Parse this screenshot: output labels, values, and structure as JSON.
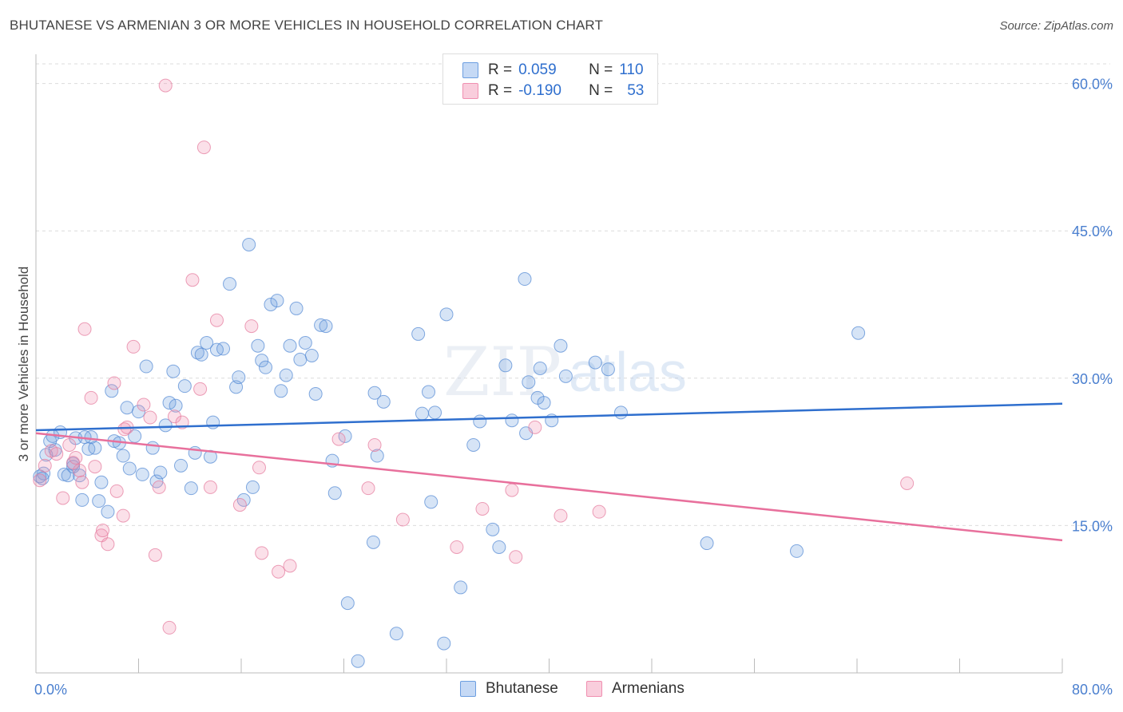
{
  "header": {
    "title": "BHUTANESE VS ARMENIAN 3 OR MORE VEHICLES IN HOUSEHOLD CORRELATION CHART",
    "source": "Source: ZipAtlas.com"
  },
  "watermark": {
    "part1": "ZIP",
    "part2": "atlas"
  },
  "legend_top": {
    "rows": [
      {
        "r_label": "R =",
        "r_value": "0.059",
        "n_label": "N =",
        "n_value": "110",
        "color": "#6c9ee0"
      },
      {
        "r_label": "R =",
        "r_value": "-0.190",
        "n_label": "N =",
        "n_value": "53",
        "color": "#f08fb0"
      }
    ]
  },
  "legend_bottom": [
    {
      "label": "Bhutanese",
      "color": "#6c9ee0"
    },
    {
      "label": "Armenians",
      "color": "#f08fb0"
    }
  ],
  "chart_data": {
    "type": "scatter",
    "title": "BHUTANESE VS ARMENIAN 3 OR MORE VEHICLES IN HOUSEHOLD CORRELATION CHART",
    "xlabel": "",
    "ylabel": "3 or more Vehicles in Household",
    "xlim": [
      0,
      80
    ],
    "ylim": [
      0,
      62
    ],
    "x_tick_labels": [
      "0.0%",
      "80.0%"
    ],
    "y_ticks": [
      15,
      30,
      45,
      60
    ],
    "y_tick_labels": [
      "15.0%",
      "30.0%",
      "45.0%",
      "60.0%"
    ],
    "grid": true,
    "legend_position": "top-center",
    "series": [
      {
        "name": "Bhutanese",
        "color": "#6c9ee0",
        "stroke": "#5a8dd6",
        "trend": {
          "x": [
            0,
            80
          ],
          "y": [
            24.7,
            27.4
          ],
          "color": "#2f6fce"
        },
        "points": [
          [
            0.3,
            20.0
          ],
          [
            0.6,
            20.3
          ],
          [
            0.8,
            22.2
          ],
          [
            1.1,
            23.6
          ],
          [
            1.3,
            24.1
          ],
          [
            1.5,
            22.7
          ],
          [
            1.9,
            24.5
          ],
          [
            2.2,
            20.2
          ],
          [
            2.5,
            20.1
          ],
          [
            2.9,
            21.3
          ],
          [
            3.1,
            23.9
          ],
          [
            3.4,
            20.1
          ],
          [
            3.6,
            17.6
          ],
          [
            4.1,
            22.8
          ],
          [
            4.3,
            24.0
          ],
          [
            4.6,
            22.9
          ],
          [
            4.9,
            17.5
          ],
          [
            5.1,
            19.4
          ],
          [
            5.6,
            16.4
          ],
          [
            5.9,
            28.7
          ],
          [
            6.1,
            23.6
          ],
          [
            6.5,
            23.4
          ],
          [
            6.8,
            22.1
          ],
          [
            7.1,
            27.0
          ],
          [
            7.3,
            20.8
          ],
          [
            7.7,
            24.1
          ],
          [
            8.0,
            26.6
          ],
          [
            8.3,
            20.2
          ],
          [
            8.6,
            31.2
          ],
          [
            9.1,
            22.9
          ],
          [
            9.4,
            19.5
          ],
          [
            9.7,
            20.4
          ],
          [
            10.1,
            25.2
          ],
          [
            10.4,
            27.5
          ],
          [
            10.7,
            30.7
          ],
          [
            10.9,
            27.2
          ],
          [
            11.3,
            21.1
          ],
          [
            11.6,
            29.2
          ],
          [
            12.1,
            18.8
          ],
          [
            12.4,
            22.4
          ],
          [
            12.6,
            32.6
          ],
          [
            12.9,
            32.4
          ],
          [
            13.3,
            33.6
          ],
          [
            13.6,
            22.0
          ],
          [
            13.8,
            25.5
          ],
          [
            14.1,
            32.9
          ],
          [
            14.6,
            33.0
          ],
          [
            15.1,
            39.6
          ],
          [
            15.6,
            29.1
          ],
          [
            15.8,
            30.1
          ],
          [
            16.2,
            17.6
          ],
          [
            16.6,
            43.6
          ],
          [
            16.9,
            18.9
          ],
          [
            17.3,
            33.3
          ],
          [
            17.6,
            31.8
          ],
          [
            17.9,
            31.1
          ],
          [
            18.3,
            37.5
          ],
          [
            18.8,
            37.9
          ],
          [
            19.1,
            28.7
          ],
          [
            19.5,
            30.3
          ],
          [
            19.8,
            33.3
          ],
          [
            20.3,
            37.1
          ],
          [
            20.6,
            31.9
          ],
          [
            21.0,
            33.6
          ],
          [
            21.5,
            32.3
          ],
          [
            21.8,
            28.4
          ],
          [
            22.2,
            35.4
          ],
          [
            22.6,
            35.3
          ],
          [
            23.1,
            21.6
          ],
          [
            23.3,
            18.3
          ],
          [
            24.1,
            24.1
          ],
          [
            26.3,
            13.3
          ],
          [
            26.4,
            28.5
          ],
          [
            26.6,
            22.1
          ],
          [
            27.1,
            27.6
          ],
          [
            28.1,
            4.0
          ],
          [
            29.8,
            34.5
          ],
          [
            30.1,
            26.4
          ],
          [
            30.6,
            28.6
          ],
          [
            30.8,
            17.4
          ],
          [
            31.1,
            26.5
          ],
          [
            31.8,
            3.0
          ],
          [
            32.0,
            36.5
          ],
          [
            33.1,
            8.7
          ],
          [
            34.1,
            23.2
          ],
          [
            34.6,
            25.6
          ],
          [
            35.6,
            14.6
          ],
          [
            36.1,
            12.8
          ],
          [
            36.6,
            31.3
          ],
          [
            37.1,
            25.7
          ],
          [
            38.1,
            40.1
          ],
          [
            38.4,
            29.6
          ],
          [
            39.1,
            28.0
          ],
          [
            39.3,
            31.0
          ],
          [
            39.6,
            27.5
          ],
          [
            40.2,
            25.7
          ],
          [
            40.9,
            33.3
          ],
          [
            41.3,
            30.2
          ],
          [
            43.6,
            31.6
          ],
          [
            44.6,
            30.9
          ],
          [
            45.6,
            26.5
          ],
          [
            52.3,
            13.2
          ],
          [
            59.3,
            12.4
          ],
          [
            64.1,
            34.6
          ],
          [
            38.2,
            24.4
          ],
          [
            25.1,
            1.2
          ],
          [
            24.3,
            7.1
          ],
          [
            3.8,
            24.0
          ],
          [
            2.9,
            21.0
          ],
          [
            0.5,
            19.8
          ]
        ]
      },
      {
        "name": "Armenians",
        "color": "#f08fb0",
        "stroke": "#e57fa0",
        "trend": {
          "x": [
            0,
            80
          ],
          "y": [
            24.4,
            13.5
          ],
          "color": "#e8709c"
        },
        "points": [
          [
            0.3,
            19.6
          ],
          [
            0.7,
            21.1
          ],
          [
            1.2,
            22.6
          ],
          [
            1.6,
            22.3
          ],
          [
            2.1,
            17.8
          ],
          [
            2.6,
            23.2
          ],
          [
            2.9,
            21.4
          ],
          [
            3.4,
            20.6
          ],
          [
            3.6,
            19.4
          ],
          [
            3.8,
            35.0
          ],
          [
            4.3,
            28.0
          ],
          [
            4.6,
            21.0
          ],
          [
            5.1,
            14.0
          ],
          [
            5.2,
            14.5
          ],
          [
            5.6,
            13.1
          ],
          [
            6.1,
            29.5
          ],
          [
            6.3,
            18.5
          ],
          [
            6.8,
            16.0
          ],
          [
            7.1,
            25.0
          ],
          [
            7.6,
            33.2
          ],
          [
            8.4,
            27.3
          ],
          [
            8.9,
            26.0
          ],
          [
            9.3,
            12.0
          ],
          [
            9.6,
            18.9
          ],
          [
            10.1,
            59.8
          ],
          [
            10.4,
            4.6
          ],
          [
            10.8,
            26.1
          ],
          [
            11.4,
            25.5
          ],
          [
            12.2,
            40.0
          ],
          [
            12.8,
            28.9
          ],
          [
            13.1,
            53.5
          ],
          [
            13.6,
            18.9
          ],
          [
            14.1,
            35.9
          ],
          [
            15.9,
            17.1
          ],
          [
            16.8,
            35.3
          ],
          [
            17.4,
            20.9
          ],
          [
            17.6,
            12.2
          ],
          [
            18.9,
            10.3
          ],
          [
            19.8,
            10.9
          ],
          [
            23.6,
            23.8
          ],
          [
            25.9,
            18.8
          ],
          [
            26.4,
            23.2
          ],
          [
            28.6,
            15.6
          ],
          [
            32.8,
            12.8
          ],
          [
            34.8,
            16.7
          ],
          [
            37.1,
            18.6
          ],
          [
            37.4,
            11.8
          ],
          [
            38.9,
            25.0
          ],
          [
            40.9,
            16.0
          ],
          [
            43.9,
            16.4
          ],
          [
            67.9,
            19.3
          ],
          [
            6.9,
            24.8
          ],
          [
            3.1,
            21.9
          ]
        ]
      }
    ]
  }
}
